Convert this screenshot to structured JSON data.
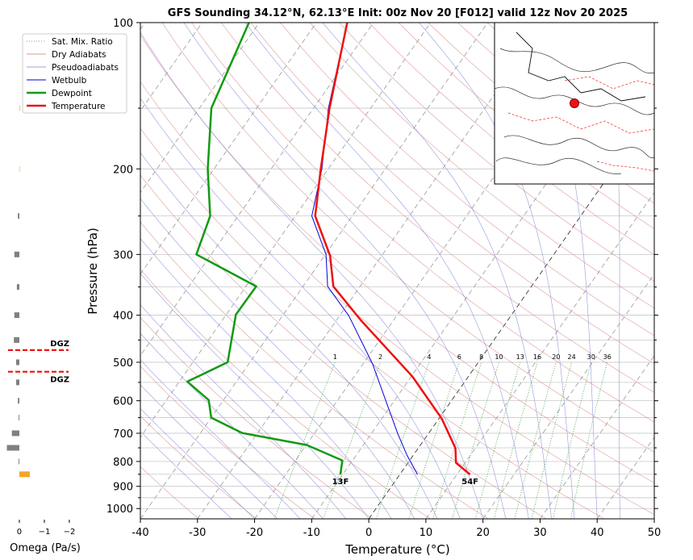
{
  "chart_data": [
    {
      "type": "skewt",
      "title": "GFS Sounding 34.12°N, 62.13°E Init: 00z Nov 20 [F012] valid 12z Nov 20 2025",
      "x_label": "Temperature (°C)",
      "y_label": "Pressure (hPa)",
      "xlim": [
        -40,
        50
      ],
      "ylim": [
        1050,
        100
      ],
      "log_y": true,
      "xticks": [
        -40,
        -30,
        -20,
        -10,
        0,
        10,
        20,
        30,
        40,
        50
      ],
      "yticks": [
        100,
        200,
        300,
        400,
        500,
        600,
        700,
        800,
        900,
        1000
      ],
      "yticks_minor": [
        150,
        250,
        350,
        450,
        550,
        650,
        750,
        850,
        950
      ],
      "grid": true,
      "legend": "upper left",
      "reference_lines": [
        {
          "name": "Sat. Mix. Ratio",
          "color": "#3a9a3a"
        },
        {
          "name": "Dry Adiabats",
          "color": "#d07070"
        },
        {
          "name": "Pseudoadiabats",
          "color": "#8080d8"
        }
      ],
      "mixing_ratio_labels": [
        1,
        2,
        4,
        6,
        8,
        10,
        13,
        16,
        20,
        24,
        30,
        36
      ],
      "series": [
        {
          "name": "Wetbulb",
          "color": "#0000dd",
          "width": 1,
          "pressure": [
            851,
            775,
            699,
            503,
            401,
            349,
            300,
            250,
            200,
            150,
            100
          ],
          "values": [
            3.1,
            -1.2,
            -5.5,
            -18.4,
            -28.4,
            -35.7,
            -39.9,
            -47.1,
            -51.1,
            -57.4,
            -64.6
          ]
        },
        {
          "name": "Dewpoint",
          "color": "#129a12",
          "width": 2.5,
          "pressure": [
            851,
            796,
            740,
            699,
            650,
            598,
            548,
            500,
            399,
            349,
            300,
            250,
            200,
            150,
            100
          ],
          "values": [
            -10.4,
            -11.8,
            -19.9,
            -32.7,
            -40,
            -42.6,
            -48.6,
            -43.9,
            -48.3,
            -48.2,
            -62.6,
            -64.9,
            -71.1,
            -77.9,
            -81.8
          ]
        },
        {
          "name": "Temperature",
          "color": "#ee1111",
          "width": 2.5,
          "pressure": [
            851,
            805,
            751,
            653,
            535,
            410,
            349,
            302,
            250,
            200,
            150,
            100
          ],
          "values": [
            12.3,
            8.4,
            6.5,
            0.5,
            -9.8,
            -25.7,
            -34.7,
            -39,
            -46.5,
            -51.3,
            -57.2,
            -64.6
          ]
        }
      ],
      "annotations": [
        {
          "text": "13F",
          "series": 1
        },
        {
          "text": "54F",
          "series": 2
        }
      ]
    },
    {
      "type": "omega",
      "x_label": "Omega (Pa/s)",
      "xlim": [
        0.5,
        -2.05
      ],
      "xticks": [
        0,
        {
          "value": -1,
          "label": "−1"
        },
        {
          "value": -2,
          "label": "−2"
        }
      ],
      "pressure": [
        150,
        200,
        250,
        300,
        350,
        400,
        450,
        500,
        550,
        600,
        650,
        700,
        750,
        800,
        850
      ],
      "values": [
        -0.03,
        -0.02,
        0.06,
        0.2,
        0.1,
        0.2,
        0.22,
        0.13,
        0.13,
        0.06,
        0.03,
        0.3,
        0.5,
        0.03,
        -0.42
      ],
      "colors": [
        "#f0d030",
        "#f0d030",
        "#808080",
        "#808080",
        "#808080",
        "#808080",
        "#808080",
        "#808080",
        "#808080",
        "#808080",
        "#808080",
        "#808080",
        "#808080",
        "#808080",
        "#f5a623"
      ],
      "dgz": {
        "label": "DGZ",
        "color": "#ee1111",
        "levels": [
          472,
          523
        ]
      }
    }
  ]
}
